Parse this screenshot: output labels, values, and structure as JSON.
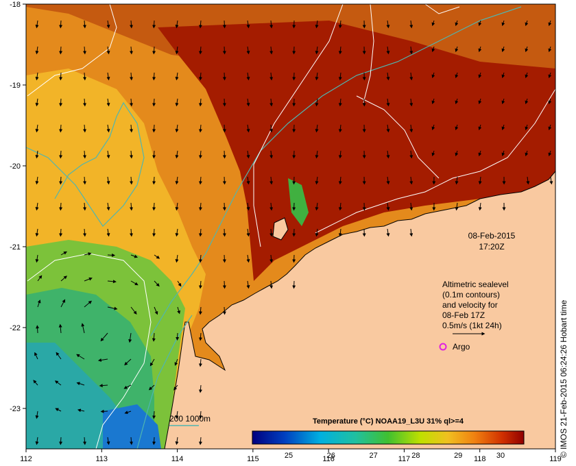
{
  "x_ticks": [
    "112",
    "113",
    "114",
    "115",
    "116",
    "117",
    "118",
    "119"
  ],
  "y_ticks": [
    "-18",
    "-19",
    "-20",
    "-21",
    "-22",
    "-23"
  ],
  "timestamp": {
    "date": "08-Feb-2015",
    "time": "17:20Z"
  },
  "legend": {
    "line1": "Altimetric sealevel",
    "line2": "(0.1m contours)",
    "line3": "and velocity for",
    "line4": "08-Feb 17Z",
    "line5": "0.5m/s (1kt 24h)",
    "argo_label": "Argo"
  },
  "depth_legend": "200  1000m",
  "colorbar": {
    "title": "Temperature (°C) NOAA19_L3U 31% ql>=4",
    "labels": [
      "25",
      "26",
      "27",
      "28",
      "29",
      "30"
    ]
  },
  "credit": "© IMOS 21-Feb-2015 06:24:26 Hobart time",
  "colors": {
    "land": "#f9c9a0",
    "sst_warm": "#a11a00",
    "sst_mid": "#e69420",
    "sst_cool": "#3fb36a",
    "contour": "#ffffff",
    "isobath": "#4fb6b0",
    "argo": "#e020e0"
  }
}
